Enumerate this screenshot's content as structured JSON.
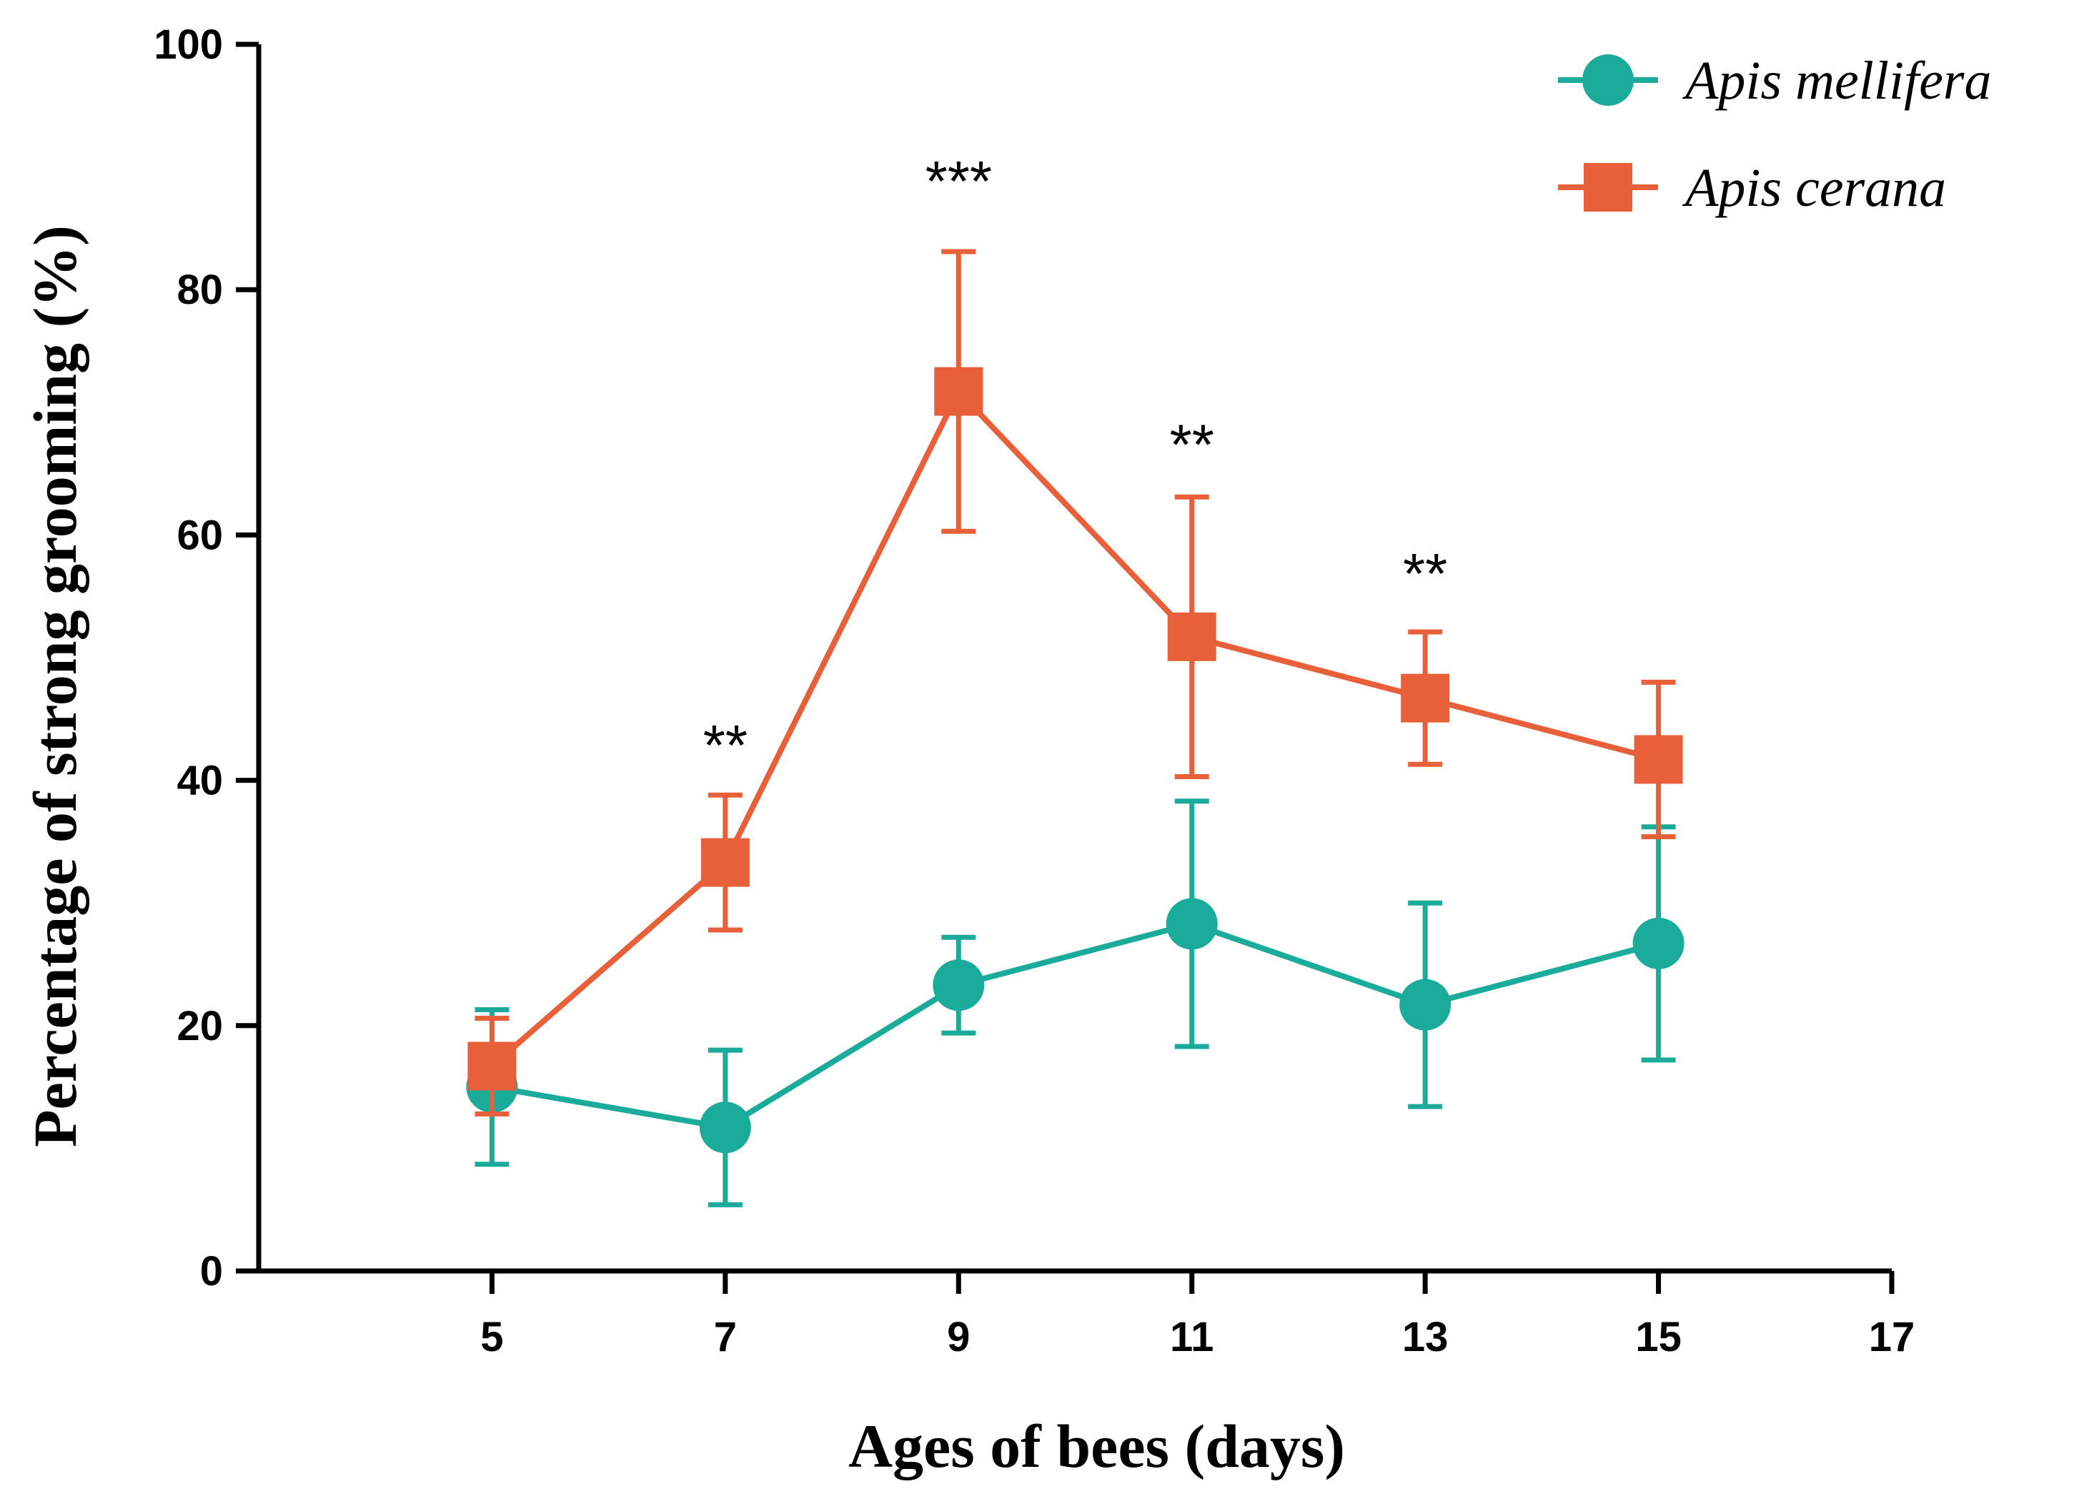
{
  "chart_data": {
    "type": "line",
    "title": "",
    "xlabel": "Ages of bees (days)",
    "ylabel": "Percentage of strong grooming (%)",
    "xlim": [
      3,
      17
    ],
    "ylim": [
      0,
      100
    ],
    "xticks": [
      5,
      7,
      9,
      11,
      13,
      15,
      17
    ],
    "xtick_labels": [
      "5",
      "7",
      "9",
      "11",
      "13",
      "15",
      "17"
    ],
    "yticks": [
      0,
      20,
      40,
      60,
      80,
      100
    ],
    "ytick_labels": [
      "0",
      "20",
      "40",
      "60",
      "80",
      "100"
    ],
    "grid": false,
    "legend_position": "top-right",
    "series": [
      {
        "name": "Apis mellifera",
        "color": "#1aab9b",
        "marker": "circle",
        "x": [
          5,
          7,
          9,
          11,
          13,
          15
        ],
        "y": [
          15,
          11.7,
          23.3,
          28.3,
          21.7,
          26.7
        ],
        "error": [
          6.3,
          6.3,
          3.9,
          10,
          8.3,
          9.5
        ]
      },
      {
        "name": "Apis cerana",
        "color": "#e8603a",
        "marker": "square",
        "x": [
          5,
          7,
          9,
          11,
          13,
          15
        ],
        "y": [
          16.7,
          33.3,
          71.7,
          51.7,
          46.7,
          41.7
        ],
        "error": [
          3.9,
          5.5,
          11.4,
          11.4,
          5.4,
          6.3
        ]
      }
    ],
    "annotations": [
      {
        "x": 7,
        "y": 43,
        "text": "**"
      },
      {
        "x": 9,
        "y": 89,
        "text": "***"
      },
      {
        "x": 11,
        "y": 67.5,
        "text": "**"
      },
      {
        "x": 13,
        "y": 57,
        "text": "**"
      }
    ]
  }
}
